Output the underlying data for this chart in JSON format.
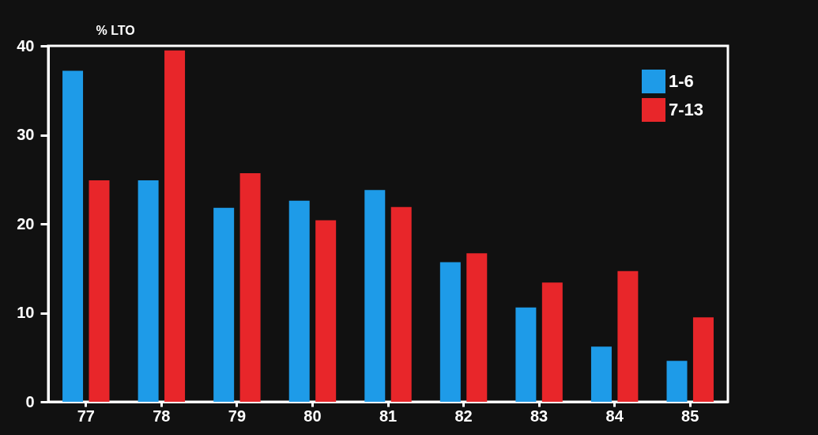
{
  "chart_data": {
    "type": "bar",
    "ylabel": "% LTO",
    "categories": [
      "77",
      "78",
      "79",
      "80",
      "81",
      "82",
      "83",
      "84",
      "85"
    ],
    "series": [
      {
        "name": "1-6",
        "color": "#1e9be8",
        "values": [
          37.2,
          24.9,
          21.8,
          22.6,
          23.8,
          15.7,
          10.6,
          6.2,
          4.6
        ]
      },
      {
        "name": "7-13",
        "color": "#e8262a",
        "values": [
          24.9,
          39.5,
          25.7,
          20.4,
          21.9,
          16.7,
          13.4,
          14.7,
          9.5
        ]
      }
    ],
    "ylim": [
      0,
      40
    ],
    "yticks": [
      0,
      10,
      20,
      30,
      40
    ],
    "grid": false,
    "legend": "top right"
  }
}
